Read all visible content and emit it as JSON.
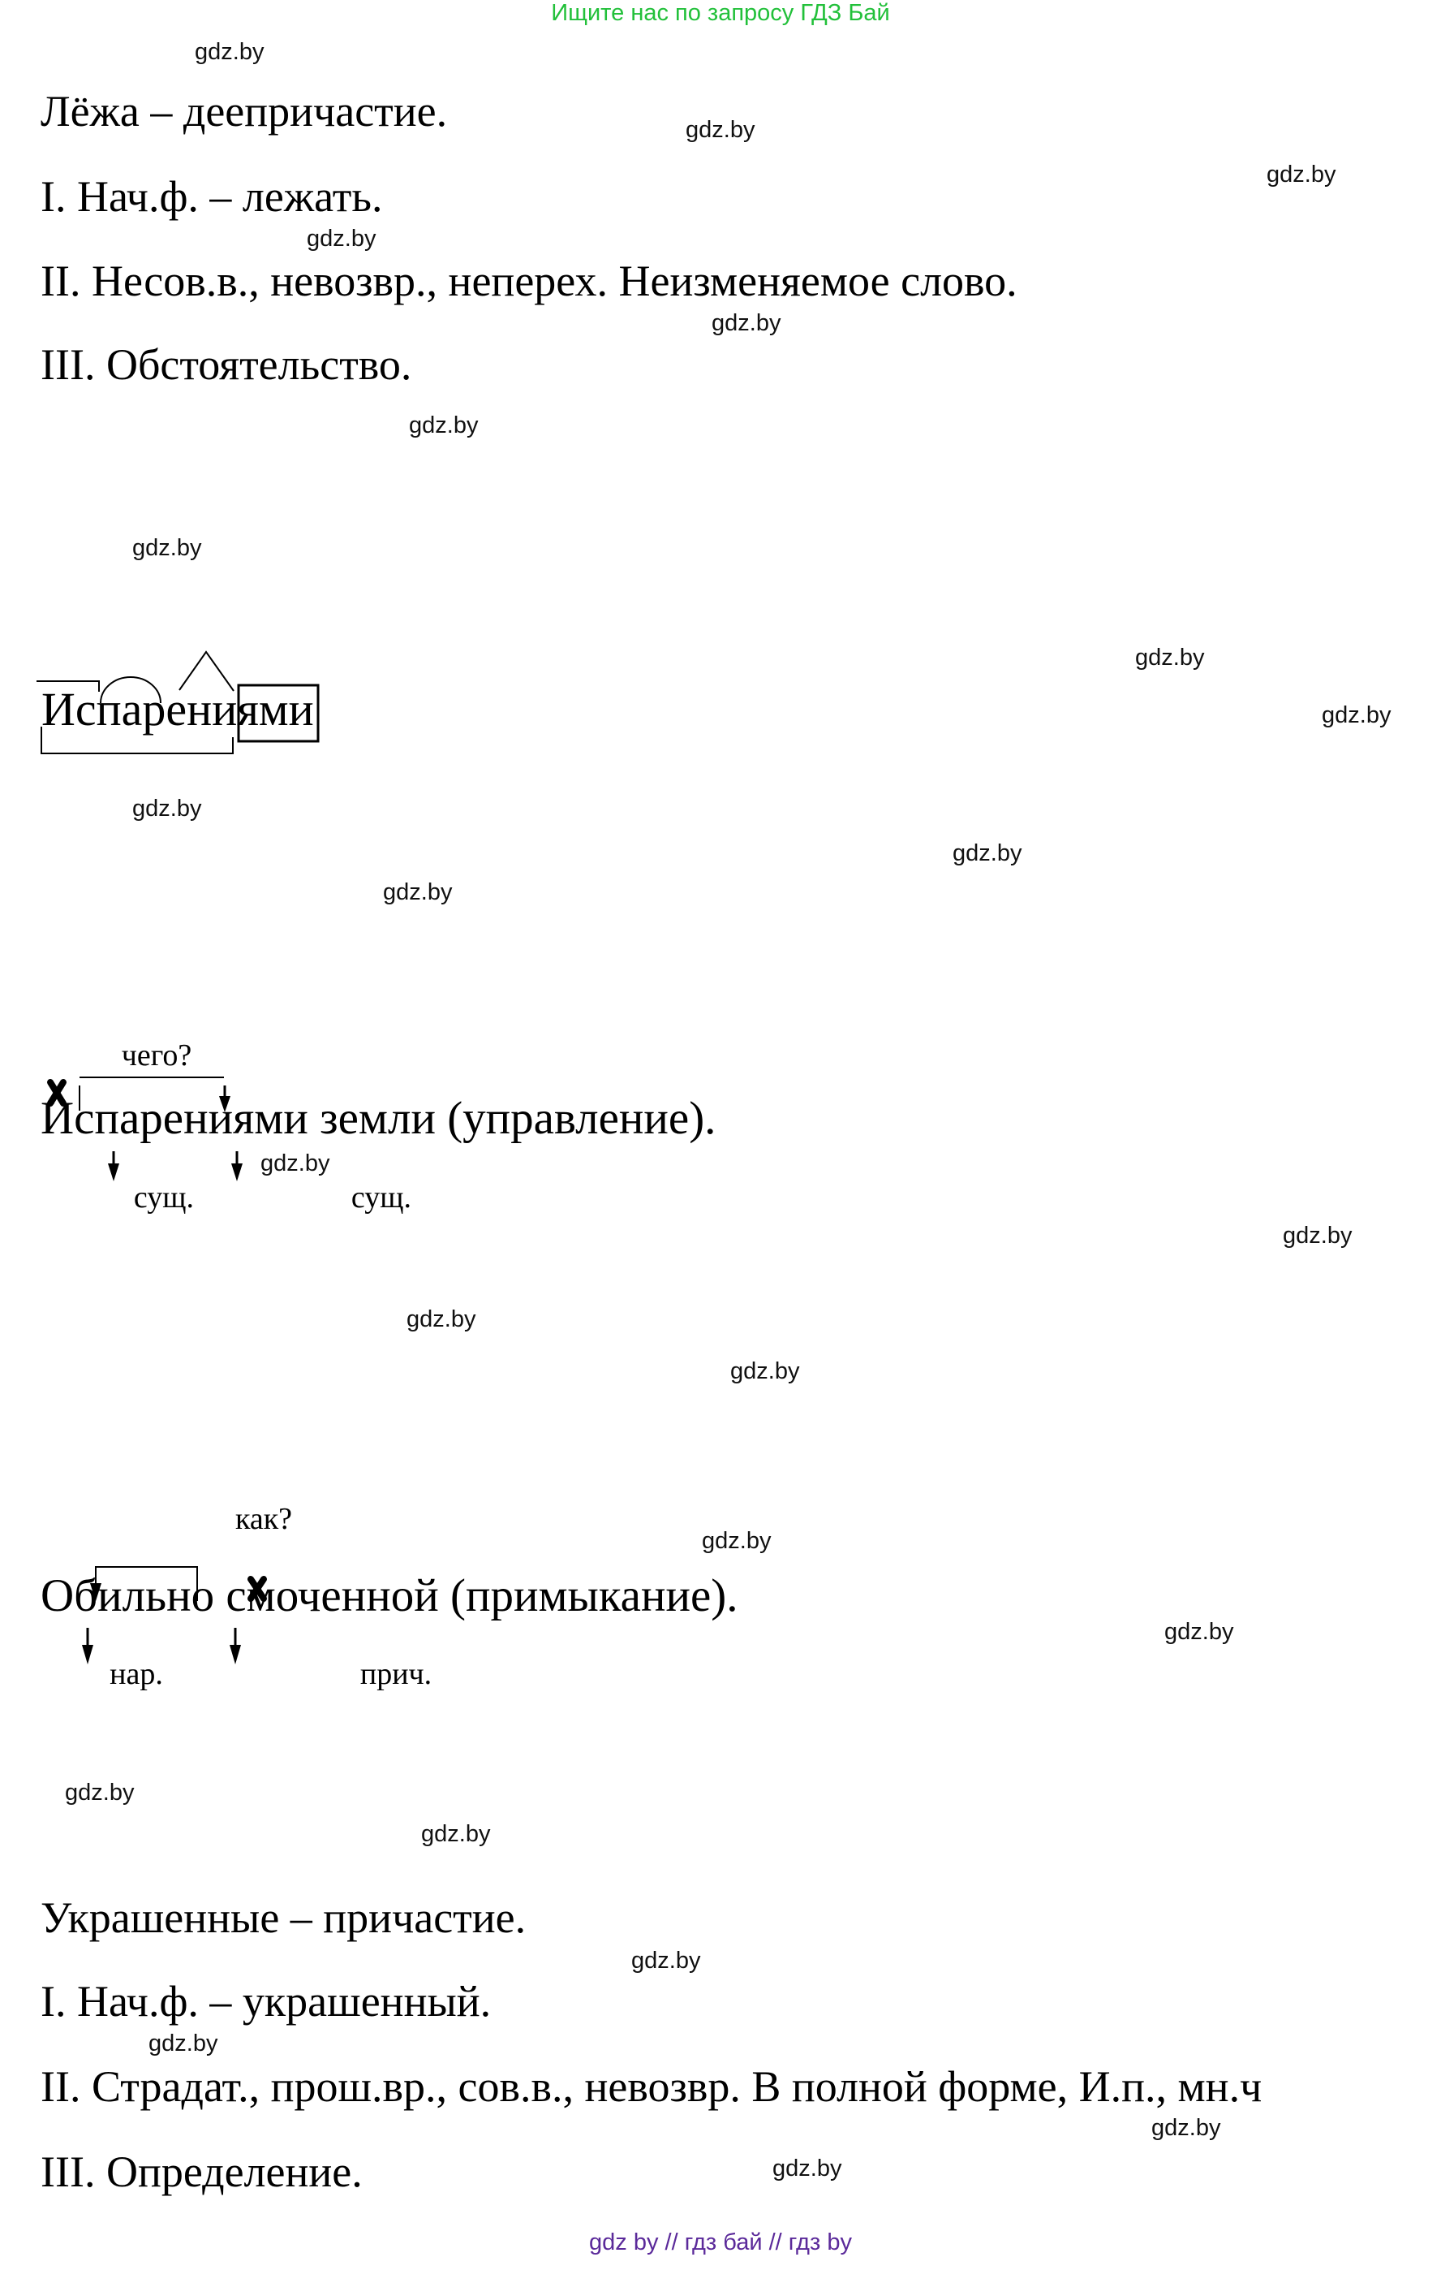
{
  "header": {
    "banner": "Ищите нас по запросу ГДЗ Бай",
    "banner_color": "#22c03a"
  },
  "section1": {
    "lines": [
      "Лёжа – деепричастие.",
      "I. Нач.ф. – лежать.",
      "II. Несов.в., невозвр., неперех. Неизменяемое слово.",
      "III. Обстоятельство."
    ]
  },
  "morpheme": {
    "word": "Испарениями",
    "icons": [
      "prefix-mark",
      "root-arc",
      "suffix-caret",
      "ending-box",
      "stem-bracket"
    ]
  },
  "phrase1": {
    "question": "чего?",
    "sentence": "Испарениями земли (управление).",
    "labels": [
      "сущ.",
      "сущ."
    ]
  },
  "phrase2": {
    "question": "как?",
    "sentence": "Обильно смоченной (примыкание).",
    "labels": [
      "нар.",
      "прич."
    ]
  },
  "section2": {
    "lines": [
      "Украшенные – причастие.",
      "I. Нач.ф. – украшенный.",
      "II. Страдат., прош.вр., сов.в., невозвр. В полной форме, И.п., мн.ч",
      "III. Определение."
    ]
  },
  "watermark": "gdz.by",
  "footer": {
    "text": "gdz by  //  гдз бай  //  гдз by",
    "color": "#5b2a9a"
  }
}
